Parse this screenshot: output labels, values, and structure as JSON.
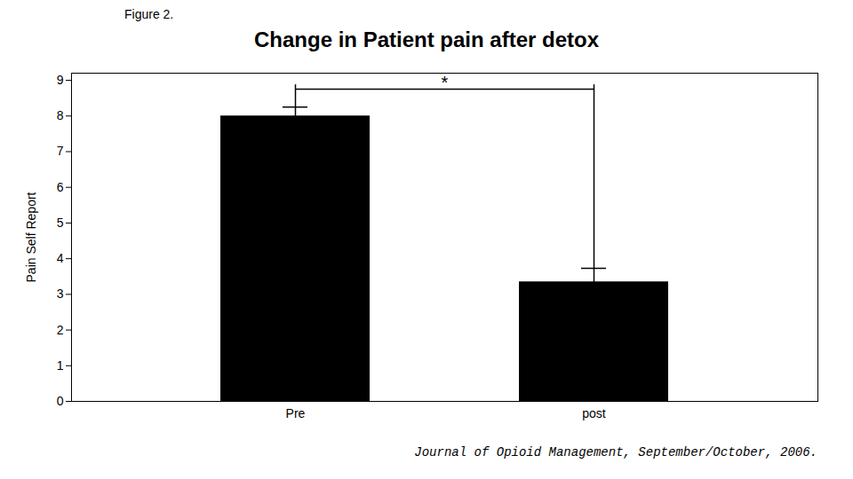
{
  "chart_data": {
    "type": "bar",
    "title": "Change in Patient pain after detox",
    "figure_label": "Figure 2.",
    "footer": "Journal of Opioid Management, September/October, 2006.",
    "ylabel": "Pain Self Report",
    "categories": [
      "Pre",
      "post"
    ],
    "values": [
      8.0,
      3.35
    ],
    "errors": [
      0.25,
      0.38
    ],
    "color": "#000000",
    "ylim": [
      0,
      9.2
    ],
    "yticks": [
      0,
      1,
      2,
      3,
      4,
      5,
      6,
      7,
      8,
      9
    ],
    "grid": false,
    "annotations": [
      {
        "text": "*",
        "from": "Pre",
        "to": "post",
        "y": 8.75
      }
    ]
  }
}
